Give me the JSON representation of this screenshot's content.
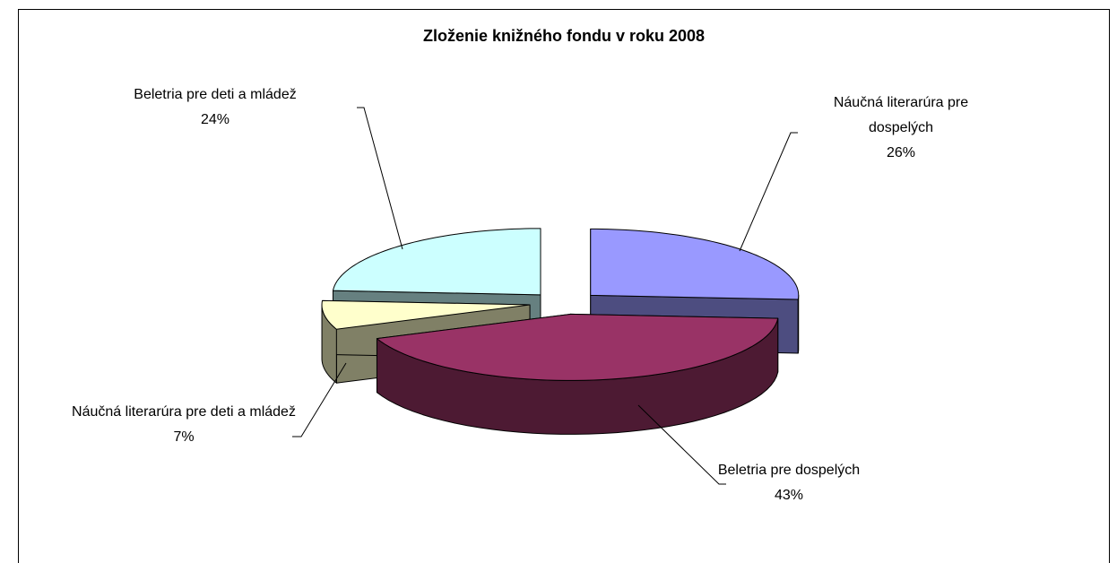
{
  "chart_data": {
    "type": "pie3d",
    "title": "Zloženie knižného fondu v roku 2008",
    "categories": [
      "Náučná literarúra pre dospelých",
      "Beletria pre dospelých",
      "Náučná literarúra pre deti a mládež",
      "Beletria pre deti a mládež"
    ],
    "values": [
      26,
      43,
      7,
      24
    ],
    "value_labels": [
      "26%",
      "43%",
      "7%",
      "24%"
    ],
    "colors": [
      "#9999ff",
      "#993366",
      "#ffffcc",
      "#ccffff"
    ]
  }
}
